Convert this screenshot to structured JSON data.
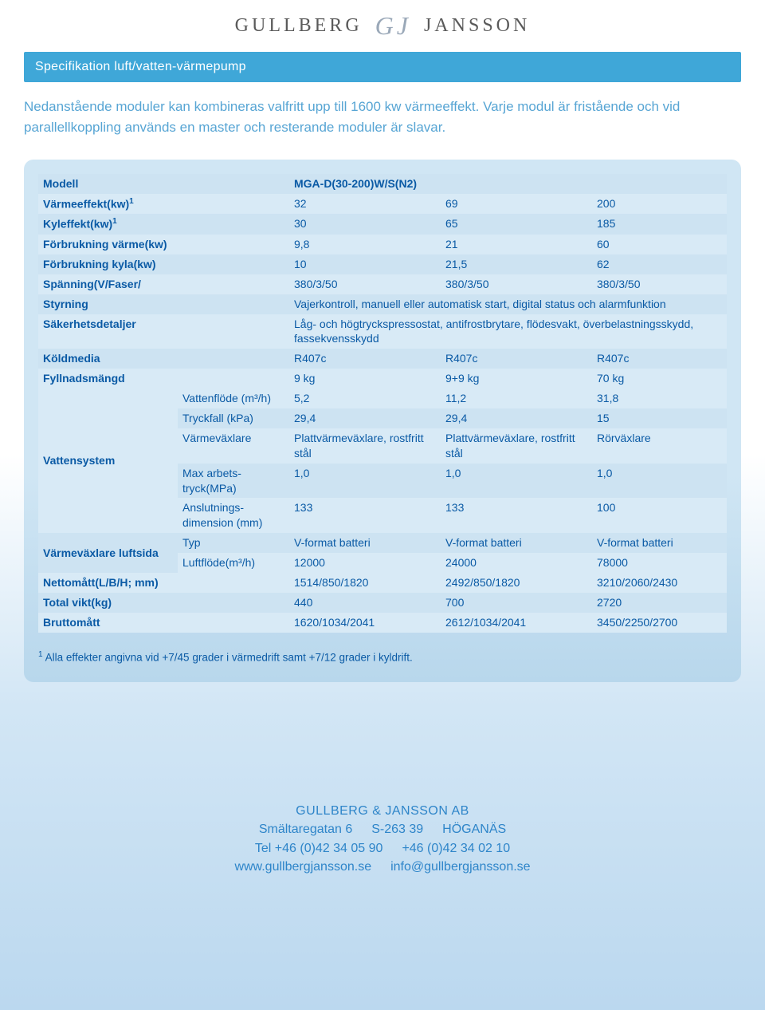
{
  "logo": {
    "left": "GULLBERG",
    "right": "JANSSON"
  },
  "section_title": "Specifikation luft/vatten-värmepump",
  "intro": "Nedanstående moduler kan kombineras valfritt upp till 1600 kw värmeeffekt. Varje modul är fristående och vid parallellkoppling används en master och resterande moduler är slavar.",
  "table": {
    "colors": {
      "band_a": "#cde3f2",
      "band_b": "#d8eaf6",
      "text": "#0a5aa5",
      "card_top": "#d0e6f4",
      "card_bottom": "#b8d7ec"
    },
    "header_label": "Modell",
    "header_value": "MGA-D(30-200)W/S(N2)",
    "simple": [
      {
        "label": "Värmeeffekt(kw)",
        "sup": "1",
        "v": [
          "32",
          "69",
          "200"
        ]
      },
      {
        "label": "Kyleffekt(kw)",
        "sup": "1",
        "v": [
          "30",
          "65",
          "185"
        ]
      },
      {
        "label": "Förbrukning värme(kw)",
        "v": [
          "9,8",
          "21",
          "60"
        ]
      },
      {
        "label": "Förbrukning kyla(kw)",
        "v": [
          "10",
          "21,5",
          "62"
        ]
      },
      {
        "label": "Spänning(V/Faser/",
        "v": [
          "380/3/50",
          "380/3/50",
          "380/3/50"
        ]
      }
    ],
    "span_rows": [
      {
        "label": "Styrning",
        "text": "Vajerkontroll, manuell eller automatisk start, digital status och alarmfunktion"
      },
      {
        "label": "Säkerhetsdetaljer",
        "text": "Låg- och högtryckspressostat, antifrostbrytare, flödesvakt, överbe­lastningsskydd, fassekvensskydd"
      }
    ],
    "simple2": [
      {
        "label": "Köldmedia",
        "v": [
          "R407c",
          "R407c",
          "R407c"
        ]
      },
      {
        "label": "Fyllnadsmängd",
        "v": [
          "9 kg",
          "9+9 kg",
          "70 kg"
        ]
      }
    ],
    "vattensystem": {
      "group_label": "Vattensystem",
      "rows": [
        {
          "sub": "Vattenflöde (m³/h)",
          "v": [
            "5,2",
            "11,2",
            "31,8"
          ]
        },
        {
          "sub": "Tryckfall (kPa)",
          "v": [
            "29,4",
            "29,4",
            "15"
          ]
        },
        {
          "sub": "Värmeväxlare",
          "v": [
            "Plattvärmeväxlare, rostfritt stål",
            "Plattvärmeväxlare, rostfritt stål",
            "Rörväxlare"
          ]
        },
        {
          "sub": "Max arbets­tryck(MPa)",
          "v": [
            "1,0",
            "1,0",
            "1,0"
          ]
        },
        {
          "sub": "Anslutnings­dimension (mm)",
          "v": [
            "133",
            "133",
            "100"
          ]
        }
      ]
    },
    "luftsida": {
      "group_label": "Värmeväxlare luftsida",
      "rows": [
        {
          "sub": "Typ",
          "v": [
            "V-format batteri",
            "V-format batteri",
            "V-format batteri"
          ]
        },
        {
          "sub": "Luftflöde(m³/h)",
          "v": [
            "12000",
            "24000",
            "78000"
          ]
        }
      ]
    },
    "simple3": [
      {
        "label": "Nettomått(L/B/H; mm)",
        "v": [
          "1514/850/1820",
          "2492/850/1820",
          "3210/2060/2430"
        ]
      },
      {
        "label": "Total vikt(kg)",
        "v": [
          "440",
          "700",
          "2720"
        ]
      },
      {
        "label": "Bruttomått",
        "v": [
          "1620/1034/2041",
          "2612/1034/2041",
          "3450/2250/2700"
        ]
      }
    ]
  },
  "footnote_sup": "1",
  "footnote": " Alla effekter angivna vid +7/45 grader i värmedrift samt +7/12 grader i kyldrift.",
  "footer": {
    "company": "GULLBERG & JANSSON AB",
    "addr1a": "Smältaregatan 6",
    "addr1b": "S-263 39",
    "addr1c": "HÖGANÄS",
    "tel1": "Tel +46 (0)42 34 05 90",
    "tel2": "+46 (0)42 34 02 10",
    "web": "www.gullbergjansson.se",
    "email": "info@gullbergjansson.se"
  }
}
